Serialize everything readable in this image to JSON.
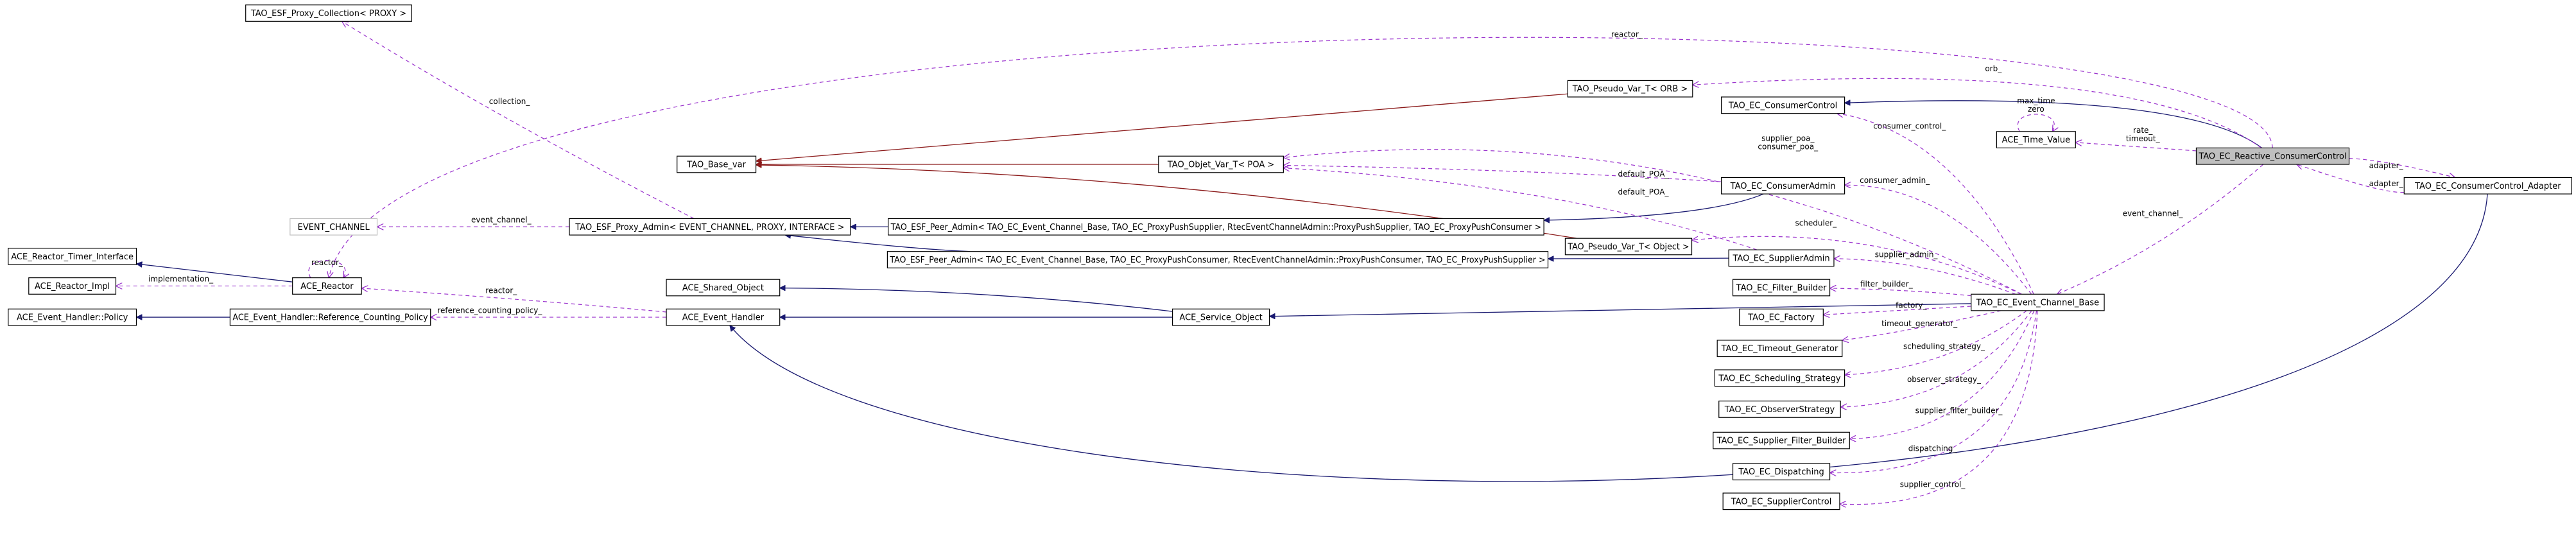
{
  "nodes": [
    {
      "label": "TAO_ESF_Proxy_Collection< PROXY >"
    },
    {
      "label": "TAO_Pseudo_Var_T< ORB >"
    },
    {
      "label": "TAO_EC_ConsumerControl"
    },
    {
      "label": "TAO_Base_var"
    },
    {
      "label": "TAO_Objet_Var_T< POA >"
    },
    {
      "label": "TAO_EC_Reactive_ConsumerControl"
    },
    {
      "label": "ACE_Time_Value"
    },
    {
      "label": "TAO_EC_ConsumerAdmin"
    },
    {
      "label": "TAO_EC_ConsumerControl_Adapter"
    },
    {
      "label": "EVENT_CHANNEL"
    },
    {
      "label": "TAO_ESF_Proxy_Admin< EVENT_CHANNEL, PROXY, INTERFACE >"
    },
    {
      "label": "TAO_ESF_Peer_Admin< TAO_EC_Event_Channel_Base, TAO_EC_ProxyPushSupplier, RtecEventChannelAdmin::ProxyPushSupplier, TAO_EC_ProxyPushConsumer >"
    },
    {
      "label": "ACE_Reactor_Timer_Interface"
    },
    {
      "label": "TAO_Pseudo_Var_T< Object >"
    },
    {
      "label": "TAO_EC_SupplierAdmin"
    },
    {
      "label": "TAO_ESF_Peer_Admin< TAO_EC_Event_Channel_Base, TAO_EC_ProxyPushConsumer, RtecEventChannelAdmin::ProxyPushConsumer, TAO_EC_ProxyPushSupplier >"
    },
    {
      "label": "ACE_Reactor_Impl"
    },
    {
      "label": "ACE_Reactor"
    },
    {
      "label": "ACE_Shared_Object"
    },
    {
      "label": "TAO_EC_Filter_Builder"
    },
    {
      "label": "TAO_EC_Event_Channel_Base"
    },
    {
      "label": "ACE_Event_Handler::Policy"
    },
    {
      "label": "ACE_Event_Handler::Reference_Counting_Policy"
    },
    {
      "label": "ACE_Event_Handler"
    },
    {
      "label": "ACE_Service_Object"
    },
    {
      "label": "TAO_EC_Factory"
    },
    {
      "label": "TAO_EC_Timeout_Generator"
    },
    {
      "label": "TAO_EC_Scheduling_Strategy"
    },
    {
      "label": "TAO_EC_ObserverStrategy"
    },
    {
      "label": "TAO_EC_Supplier_Filter_Builder"
    },
    {
      "label": "TAO_EC_Dispatching"
    },
    {
      "label": "TAO_EC_SupplierControl"
    }
  ],
  "edges": [
    {
      "label": [
        "implementation_"
      ]
    },
    {
      "label": [
        "reactor_"
      ]
    },
    {
      "label": [
        "reactor_"
      ]
    },
    {
      "label": [
        "reference_counting_policy_"
      ]
    },
    {
      "label": [
        "event_channel_"
      ]
    },
    {
      "label": [
        "collection_"
      ]
    },
    {
      "label": [
        "reactor_"
      ]
    },
    {
      "label": [
        "orb_"
      ]
    },
    {
      "label": [
        "rate_",
        "timeout_"
      ]
    },
    {
      "label": [
        "max_time",
        "zero"
      ]
    },
    {
      "label": [
        "adapter_"
      ]
    },
    {
      "label": [
        "adapter_"
      ]
    },
    {
      "label": [
        "event_channel_"
      ]
    },
    {
      "label": [
        "consumer_control_"
      ]
    },
    {
      "label": [
        "supplier_poa_",
        "consumer_poa_"
      ]
    },
    {
      "label": [
        "default_POA_"
      ]
    },
    {
      "label": [
        "default_POA_"
      ]
    },
    {
      "label": [
        "consumer_admin_"
      ]
    },
    {
      "label": [
        "scheduler_"
      ]
    },
    {
      "label": [
        "supplier_admin_"
      ]
    },
    {
      "label": [
        "filter_builder_"
      ]
    },
    {
      "label": [
        "factory_"
      ]
    },
    {
      "label": [
        "timeout_generator_"
      ]
    },
    {
      "label": [
        "scheduling_strategy_"
      ]
    },
    {
      "label": [
        "observer_strategy_"
      ]
    },
    {
      "label": [
        "supplier_filter_builder_"
      ]
    },
    {
      "label": [
        "dispatching_"
      ]
    },
    {
      "label": [
        "supplier_control_"
      ]
    }
  ]
}
